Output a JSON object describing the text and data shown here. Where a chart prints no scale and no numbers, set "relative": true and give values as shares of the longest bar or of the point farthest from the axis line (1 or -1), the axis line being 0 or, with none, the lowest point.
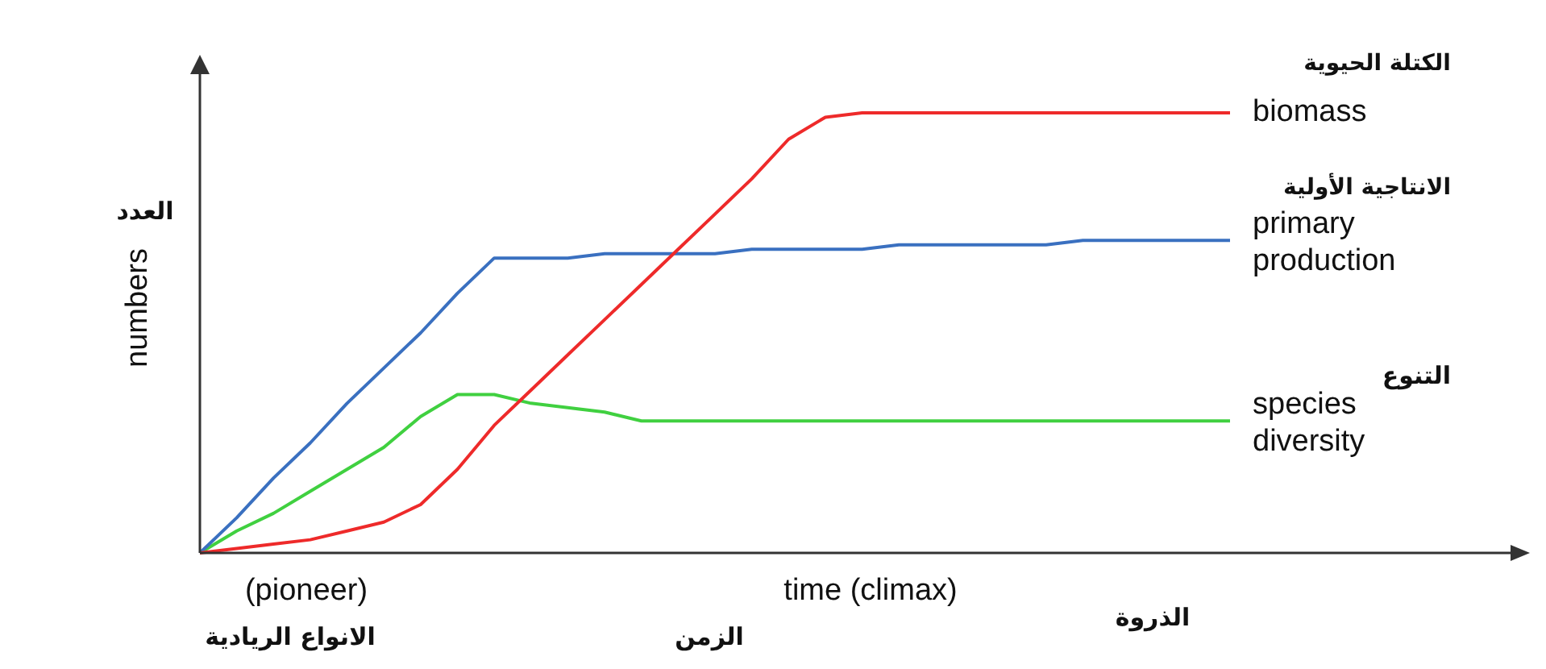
{
  "chart_data": {
    "type": "line",
    "relative": true,
    "xlabel": "time (climax)",
    "ylabel": "numbers",
    "legend": false,
    "marker": "none",
    "line_style": "solid",
    "categories": [
      null,
      null,
      null,
      null,
      null,
      null,
      null,
      null,
      null,
      null,
      null,
      null,
      null,
      null,
      null,
      null,
      null,
      null,
      null,
      null,
      null,
      null,
      null,
      null,
      null,
      null,
      null,
      null,
      null
    ],
    "series": [
      {
        "name": "biomass",
        "color": "#ee2a2a",
        "values": [
          0,
          0.01,
          0.02,
          0.03,
          0.05,
          0.07,
          0.11,
          0.19,
          0.29,
          0.37,
          0.45,
          0.53,
          0.61,
          0.69,
          0.77,
          0.85,
          0.94,
          0.99,
          1,
          1,
          1,
          1,
          1,
          1,
          1,
          1,
          1,
          1,
          1
        ]
      },
      {
        "name": "primary production",
        "color": "#3a70c0",
        "values": [
          0,
          0.08,
          0.17,
          0.25,
          0.34,
          0.42,
          0.5,
          0.59,
          0.67,
          0.67,
          0.67,
          0.68,
          0.68,
          0.68,
          0.68,
          0.69,
          0.69,
          0.69,
          0.69,
          0.7,
          0.7,
          0.7,
          0.7,
          0.7,
          0.71,
          0.71,
          0.71,
          0.71,
          0.71
        ]
      },
      {
        "name": "species diversity",
        "color": "#40d040",
        "values": [
          0,
          0.05,
          0.09,
          0.14,
          0.19,
          0.24,
          0.31,
          0.36,
          0.36,
          0.34,
          0.33,
          0.32,
          0.3,
          0.3,
          0.3,
          0.3,
          0.3,
          0.3,
          0.3,
          0.3,
          0.3,
          0.3,
          0.3,
          0.3,
          0.3,
          0.3,
          0.3,
          0.3,
          0.3
        ]
      }
    ],
    "annotations": [
      "العدد",
      "(pioneer)",
      "الانواع الريادية",
      "الزمن",
      "الذروة",
      "الكتلة الحيوية",
      "الانتاجية الأولية",
      "التنوع"
    ]
  }
}
